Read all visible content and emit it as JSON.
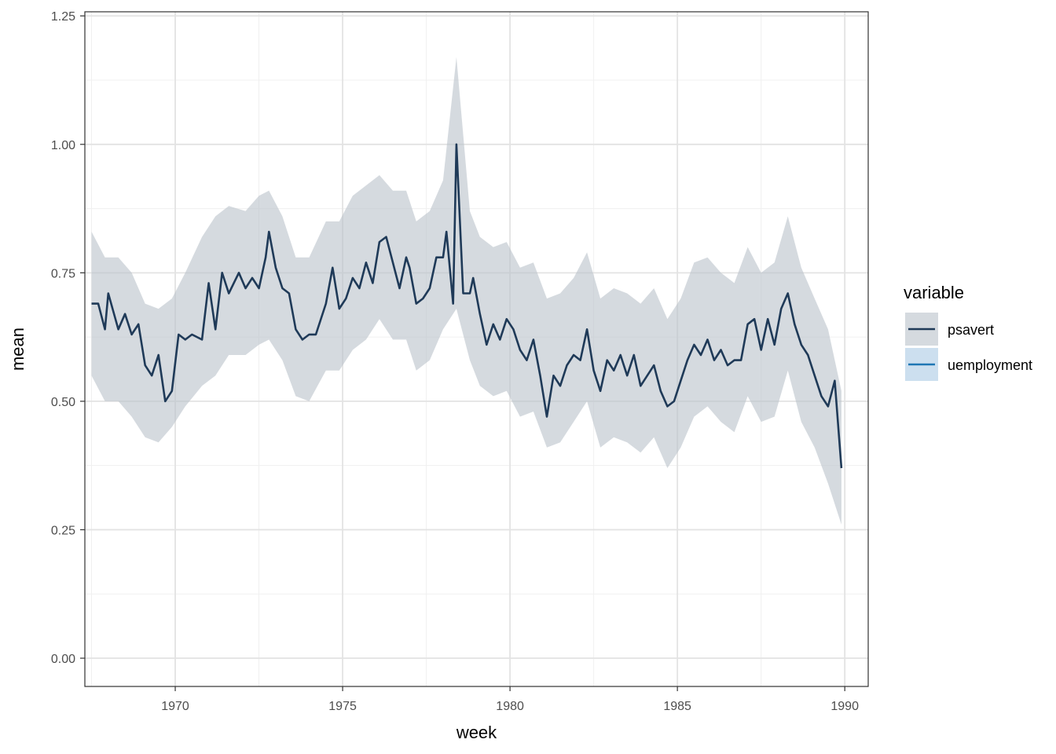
{
  "chart_data": {
    "type": "line",
    "xlabel": "week",
    "ylabel": "mean",
    "xlim": [
      1967.3,
      1990.7
    ],
    "ylim": [
      -0.055,
      1.258
    ],
    "x_ticks": [
      1970,
      1975,
      1980,
      1985,
      1990
    ],
    "y_ticks": [
      0,
      0.25,
      0.5,
      0.75,
      1.0
    ],
    "x_tick_labels": [
      "1970",
      "1975",
      "1980",
      "1985",
      "1990"
    ],
    "y_tick_labels": [
      "0.00",
      "0.25",
      "0.50",
      "0.75",
      "1.00",
      "1.25"
    ],
    "y_tick_values": [
      0,
      0.25,
      0.5,
      0.75,
      1.0,
      1.25
    ],
    "grid": true,
    "legend": {
      "title": "variable",
      "position": "right"
    },
    "series": [
      {
        "name": "psavert",
        "color": "#1f3a58",
        "band_color": "#b9c1ca",
        "points": [
          [
            1967.5,
            0.69
          ],
          [
            1967.7,
            0.69
          ],
          [
            1967.9,
            0.64
          ],
          [
            1968.0,
            0.71
          ],
          [
            1968.3,
            0.64
          ],
          [
            1968.5,
            0.67
          ],
          [
            1968.7,
            0.63
          ],
          [
            1968.9,
            0.65
          ],
          [
            1969.1,
            0.57
          ],
          [
            1969.3,
            0.55
          ],
          [
            1969.5,
            0.59
          ],
          [
            1969.7,
            0.5
          ],
          [
            1969.9,
            0.52
          ],
          [
            1970.1,
            0.63
          ],
          [
            1970.3,
            0.62
          ],
          [
            1970.5,
            0.63
          ],
          [
            1970.8,
            0.62
          ],
          [
            1971.0,
            0.73
          ],
          [
            1971.2,
            0.64
          ],
          [
            1971.4,
            0.75
          ],
          [
            1971.6,
            0.71
          ],
          [
            1971.9,
            0.75
          ],
          [
            1972.1,
            0.72
          ],
          [
            1972.3,
            0.74
          ],
          [
            1972.5,
            0.72
          ],
          [
            1972.7,
            0.78
          ],
          [
            1972.8,
            0.83
          ],
          [
            1973.0,
            0.76
          ],
          [
            1973.2,
            0.72
          ],
          [
            1973.4,
            0.71
          ],
          [
            1973.6,
            0.64
          ],
          [
            1973.8,
            0.62
          ],
          [
            1974.0,
            0.63
          ],
          [
            1974.2,
            0.63
          ],
          [
            1974.5,
            0.69
          ],
          [
            1974.7,
            0.76
          ],
          [
            1974.9,
            0.68
          ],
          [
            1975.1,
            0.7
          ],
          [
            1975.3,
            0.74
          ],
          [
            1975.5,
            0.72
          ],
          [
            1975.7,
            0.77
          ],
          [
            1975.9,
            0.73
          ],
          [
            1976.1,
            0.81
          ],
          [
            1976.3,
            0.82
          ],
          [
            1976.5,
            0.77
          ],
          [
            1976.7,
            0.72
          ],
          [
            1976.9,
            0.78
          ],
          [
            1977.0,
            0.76
          ],
          [
            1977.2,
            0.69
          ],
          [
            1977.4,
            0.7
          ],
          [
            1977.6,
            0.72
          ],
          [
            1977.8,
            0.78
          ],
          [
            1978.0,
            0.78
          ],
          [
            1978.1,
            0.83
          ],
          [
            1978.3,
            0.69
          ],
          [
            1978.4,
            1.0
          ],
          [
            1978.6,
            0.71
          ],
          [
            1978.8,
            0.71
          ],
          [
            1978.9,
            0.74
          ],
          [
            1979.1,
            0.67
          ],
          [
            1979.3,
            0.61
          ],
          [
            1979.5,
            0.65
          ],
          [
            1979.7,
            0.62
          ],
          [
            1979.9,
            0.66
          ],
          [
            1980.1,
            0.64
          ],
          [
            1980.3,
            0.6
          ],
          [
            1980.5,
            0.58
          ],
          [
            1980.7,
            0.62
          ],
          [
            1980.9,
            0.55
          ],
          [
            1981.1,
            0.47
          ],
          [
            1981.3,
            0.55
          ],
          [
            1981.5,
            0.53
          ],
          [
            1981.7,
            0.57
          ],
          [
            1981.9,
            0.59
          ],
          [
            1982.1,
            0.58
          ],
          [
            1982.3,
            0.64
          ],
          [
            1982.5,
            0.56
          ],
          [
            1982.7,
            0.52
          ],
          [
            1982.9,
            0.58
          ],
          [
            1983.1,
            0.56
          ],
          [
            1983.3,
            0.59
          ],
          [
            1983.5,
            0.55
          ],
          [
            1983.7,
            0.59
          ],
          [
            1983.9,
            0.53
          ],
          [
            1984.1,
            0.55
          ],
          [
            1984.3,
            0.57
          ],
          [
            1984.5,
            0.52
          ],
          [
            1984.7,
            0.49
          ],
          [
            1984.9,
            0.5
          ],
          [
            1985.1,
            0.54
          ],
          [
            1985.3,
            0.58
          ],
          [
            1985.5,
            0.61
          ],
          [
            1985.7,
            0.59
          ],
          [
            1985.9,
            0.62
          ],
          [
            1986.1,
            0.58
          ],
          [
            1986.3,
            0.6
          ],
          [
            1986.5,
            0.57
          ],
          [
            1986.7,
            0.58
          ],
          [
            1986.9,
            0.58
          ],
          [
            1987.1,
            0.65
          ],
          [
            1987.3,
            0.66
          ],
          [
            1987.5,
            0.6
          ],
          [
            1987.7,
            0.66
          ],
          [
            1987.9,
            0.61
          ],
          [
            1988.1,
            0.68
          ],
          [
            1988.3,
            0.71
          ],
          [
            1988.5,
            0.65
          ],
          [
            1988.7,
            0.61
          ],
          [
            1988.9,
            0.59
          ],
          [
            1989.1,
            0.55
          ],
          [
            1989.3,
            0.51
          ],
          [
            1989.5,
            0.49
          ],
          [
            1989.7,
            0.54
          ],
          [
            1989.9,
            0.37
          ]
        ],
        "band": [
          [
            1967.5,
            0.55,
            0.83
          ],
          [
            1967.9,
            0.5,
            0.78
          ],
          [
            1968.3,
            0.5,
            0.78
          ],
          [
            1968.7,
            0.47,
            0.75
          ],
          [
            1969.1,
            0.43,
            0.69
          ],
          [
            1969.5,
            0.42,
            0.68
          ],
          [
            1969.9,
            0.45,
            0.7
          ],
          [
            1970.3,
            0.49,
            0.75
          ],
          [
            1970.8,
            0.53,
            0.82
          ],
          [
            1971.2,
            0.55,
            0.86
          ],
          [
            1971.6,
            0.59,
            0.88
          ],
          [
            1972.1,
            0.59,
            0.87
          ],
          [
            1972.5,
            0.61,
            0.9
          ],
          [
            1972.8,
            0.62,
            0.91
          ],
          [
            1973.2,
            0.58,
            0.86
          ],
          [
            1973.6,
            0.51,
            0.78
          ],
          [
            1974.0,
            0.5,
            0.78
          ],
          [
            1974.5,
            0.56,
            0.85
          ],
          [
            1974.9,
            0.56,
            0.85
          ],
          [
            1975.3,
            0.6,
            0.9
          ],
          [
            1975.7,
            0.62,
            0.92
          ],
          [
            1976.1,
            0.66,
            0.94
          ],
          [
            1976.5,
            0.62,
            0.91
          ],
          [
            1976.9,
            0.62,
            0.91
          ],
          [
            1977.2,
            0.56,
            0.85
          ],
          [
            1977.6,
            0.58,
            0.87
          ],
          [
            1978.0,
            0.64,
            0.93
          ],
          [
            1978.4,
            0.68,
            1.17
          ],
          [
            1978.8,
            0.58,
            0.87
          ],
          [
            1979.1,
            0.53,
            0.82
          ],
          [
            1979.5,
            0.51,
            0.8
          ],
          [
            1979.9,
            0.52,
            0.81
          ],
          [
            1980.3,
            0.47,
            0.76
          ],
          [
            1980.7,
            0.48,
            0.77
          ],
          [
            1981.1,
            0.41,
            0.7
          ],
          [
            1981.5,
            0.42,
            0.71
          ],
          [
            1981.9,
            0.46,
            0.74
          ],
          [
            1982.3,
            0.5,
            0.79
          ],
          [
            1982.7,
            0.41,
            0.7
          ],
          [
            1983.1,
            0.43,
            0.72
          ],
          [
            1983.5,
            0.42,
            0.71
          ],
          [
            1983.9,
            0.4,
            0.69
          ],
          [
            1984.3,
            0.43,
            0.72
          ],
          [
            1984.7,
            0.37,
            0.66
          ],
          [
            1985.1,
            0.41,
            0.7
          ],
          [
            1985.5,
            0.47,
            0.77
          ],
          [
            1985.9,
            0.49,
            0.78
          ],
          [
            1986.3,
            0.46,
            0.75
          ],
          [
            1986.7,
            0.44,
            0.73
          ],
          [
            1987.1,
            0.51,
            0.8
          ],
          [
            1987.5,
            0.46,
            0.75
          ],
          [
            1987.9,
            0.47,
            0.77
          ],
          [
            1988.3,
            0.56,
            0.86
          ],
          [
            1988.7,
            0.46,
            0.76
          ],
          [
            1989.1,
            0.41,
            0.7
          ],
          [
            1989.5,
            0.34,
            0.64
          ],
          [
            1989.9,
            0.26,
            0.52
          ]
        ]
      },
      {
        "name": "uemployment",
        "color": "#1f77b4",
        "band_color": "#aac9e4",
        "points": [],
        "band": []
      }
    ]
  }
}
